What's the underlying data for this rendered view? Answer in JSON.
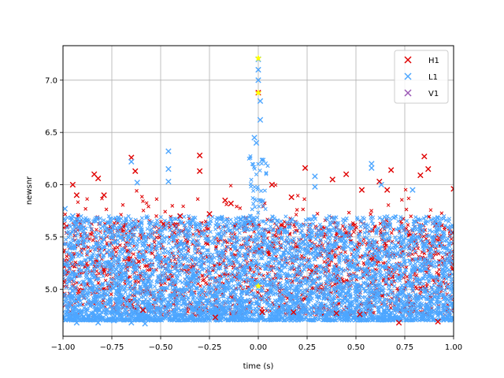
{
  "chart_data": {
    "type": "scatter",
    "title": "",
    "xlabel": "time (s)",
    "ylabel": "newsnr",
    "xlim": [
      -1.0,
      1.0
    ],
    "ylim": [
      4.55,
      7.33
    ],
    "xticks": [
      -1.0,
      -0.75,
      -0.5,
      -0.25,
      0.0,
      0.25,
      0.5,
      0.75,
      1.0
    ],
    "xtick_labels": [
      "−1.00",
      "−0.75",
      "−0.50",
      "−0.25",
      "0.00",
      "0.25",
      "0.50",
      "0.75",
      "1.00"
    ],
    "yticks": [
      5.0,
      5.5,
      6.0,
      6.5,
      7.0
    ],
    "ytick_labels": [
      "5.0",
      "5.5",
      "6.0",
      "6.5",
      "7.0"
    ],
    "grid": true,
    "legend_position": "top-right",
    "marker": "x",
    "series": [
      {
        "name": "H1",
        "color": "#e00000",
        "points": [
          [
            -0.95,
            6.0
          ],
          [
            -0.93,
            5.9
          ],
          [
            -0.84,
            6.1
          ],
          [
            -0.82,
            6.06
          ],
          [
            -0.79,
            5.9
          ],
          [
            -0.65,
            6.26
          ],
          [
            -0.63,
            6.13
          ],
          [
            -0.4,
            5.7
          ],
          [
            -0.3,
            6.28
          ],
          [
            -0.3,
            6.13
          ],
          [
            -0.25,
            5.72
          ],
          [
            -0.17,
            5.85
          ],
          [
            -0.14,
            5.82
          ],
          [
            0.0,
            6.88
          ],
          [
            0.07,
            6.0
          ],
          [
            0.17,
            5.88
          ],
          [
            0.24,
            6.16
          ],
          [
            0.38,
            6.05
          ],
          [
            0.45,
            6.1
          ],
          [
            0.53,
            5.95
          ],
          [
            0.62,
            6.03
          ],
          [
            0.66,
            5.95
          ],
          [
            0.68,
            6.14
          ],
          [
            0.83,
            6.09
          ],
          [
            0.85,
            6.27
          ],
          [
            0.87,
            6.15
          ],
          [
            1.0,
            5.96
          ],
          [
            -0.22,
            4.73
          ],
          [
            0.02,
            4.78
          ],
          [
            0.4,
            4.77
          ],
          [
            0.52,
            4.76
          ],
          [
            0.72,
            4.68
          ],
          [
            0.92,
            4.69
          ],
          [
            -0.59,
            4.8
          ],
          [
            0.18,
            4.78
          ]
        ]
      },
      {
        "name": "L1",
        "color": "#4da6ff",
        "points": [
          [
            -0.99,
            5.77
          ],
          [
            -0.95,
            5.7
          ],
          [
            -0.65,
            6.22
          ],
          [
            -0.62,
            6.02
          ],
          [
            -0.46,
            6.32
          ],
          [
            -0.46,
            6.15
          ],
          [
            -0.46,
            6.03
          ],
          [
            -0.02,
            6.45
          ],
          [
            0.0,
            7.2
          ],
          [
            0.0,
            7.1
          ],
          [
            0.0,
            7.0
          ],
          [
            0.01,
            6.8
          ],
          [
            0.01,
            6.62
          ],
          [
            -0.01,
            6.4
          ],
          [
            0.29,
            6.08
          ],
          [
            0.29,
            5.98
          ],
          [
            0.58,
            6.2
          ],
          [
            0.58,
            6.16
          ],
          [
            0.63,
            6.0
          ],
          [
            0.79,
            5.95
          ],
          [
            -0.93,
            4.68
          ],
          [
            -0.82,
            4.68
          ],
          [
            -0.74,
            4.7
          ],
          [
            -0.65,
            4.68
          ],
          [
            -0.58,
            4.67
          ]
        ]
      },
      {
        "name": "V1",
        "color": "#9b59b6",
        "points": []
      }
    ],
    "highlights": [
      {
        "x": 0.0,
        "y": 7.21,
        "color": "#ffff00"
      },
      {
        "x": 0.0,
        "y": 6.88,
        "color": "#ffff00"
      },
      {
        "x": 0.0,
        "y": 5.03,
        "color": "#ffff00"
      }
    ]
  }
}
